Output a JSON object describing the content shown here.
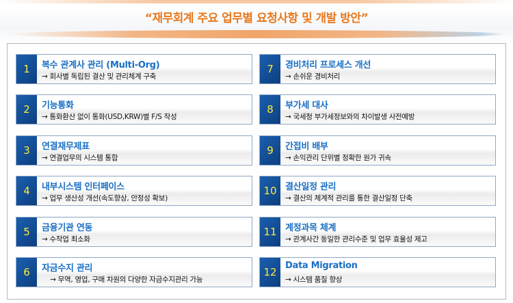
{
  "title": "“재무회계 주요 업무별 요청사항 및 개발 방안”",
  "items": [
    {
      "num": "1",
      "title": "복수 관계사 관리 (Multi-Org)",
      "desc": "→ 회사별 독립된 결산 및 관리체계 구축"
    },
    {
      "num": "2",
      "title": "기능통화",
      "desc": "→ 통화환산 없이 통화(USD,KRW)별 F/S 작성"
    },
    {
      "num": "3",
      "title": "연결재무제표",
      "desc": "→ 연결업무의 시스템 통합"
    },
    {
      "num": "4",
      "title": "내부시스템 인터페이스",
      "desc": "→ 업무 생산성 개선(속도향상, 안정성 확보)"
    },
    {
      "num": "5",
      "title": "금융기관 연동",
      "desc": "→ 수작업 최소화"
    },
    {
      "num": "6",
      "title": "자금수지 관리",
      "desc": "    → 무역, 영업, 구매 차원의 다양한 자금수지관리 가능"
    },
    {
      "num": "7",
      "title": "경비처리 프로세스 개선",
      "desc": "→ 손쉬운 경비처리"
    },
    {
      "num": "8",
      "title": "부가세 대사",
      "desc": "→ 국세청 부가세정보와의 차이발생 사전예방"
    },
    {
      "num": "9",
      "title": "간접비 배부",
      "desc": "→ 손익관리 단위별 정확한 원가 귀속"
    },
    {
      "num": "10",
      "title": "결산일정 관리",
      "desc": "→ 결산의 체계적 관리를 통한 결산일정 단축"
    },
    {
      "num": "11",
      "title": "계정과목 체계",
      "desc": "→ 관계사간 동일한 관리수준 및 업무 효율성 제고"
    },
    {
      "num": "12",
      "title": "Data Migration",
      "desc": "→ 시스템 품질 향상"
    }
  ],
  "colors": {
    "title": "#e8781c",
    "heading": "#1a6fc4",
    "number": "#ffeb3b",
    "number_bg": "#1b5fae"
  }
}
